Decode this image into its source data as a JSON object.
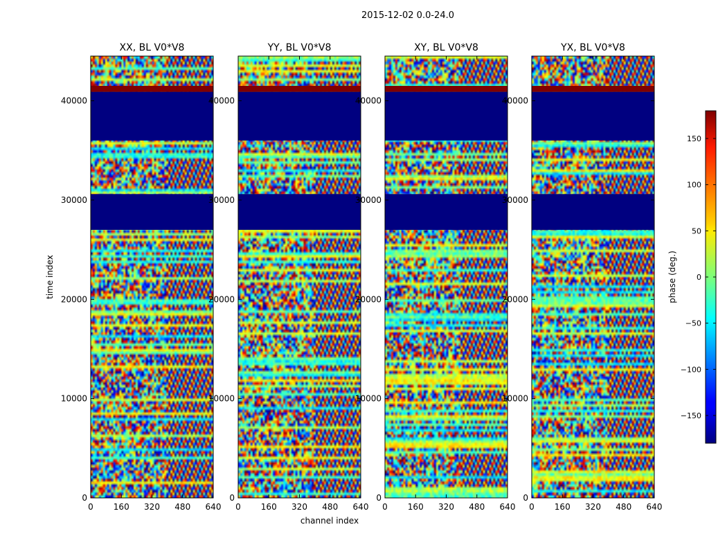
{
  "figure": {
    "suptitle": "2015-12-02 0.0-24.0"
  },
  "chart_data": {
    "type": "heatmap",
    "title": "2015-12-02 0.0-24.0",
    "xlabel": "channel index",
    "ylabel": "time index",
    "xlim": [
      0,
      640
    ],
    "ylim": [
      0,
      44500
    ],
    "x_ticks": [
      0,
      160,
      320,
      480,
      640
    ],
    "y_ticks": [
      0,
      10000,
      20000,
      30000,
      40000
    ],
    "colorbar": {
      "label": "phase (deg.)",
      "range": [
        -180,
        180
      ],
      "ticks": [
        150,
        100,
        50,
        0,
        -50,
        -100,
        -150
      ],
      "tick_labels": [
        "150",
        "100",
        "50",
        "0",
        "−50",
        "−100",
        "−150"
      ]
    },
    "panels": [
      {
        "name": "XX, BL V0*V8",
        "pol": "XX"
      },
      {
        "name": "YY, BL V0*V8",
        "pol": "YY"
      },
      {
        "name": "XY, BL V0*V8",
        "pol": "XY"
      },
      {
        "name": "YX, BL V0*V8",
        "pol": "YX"
      }
    ],
    "flagged_bands": [
      {
        "from": 36000,
        "to": 40900,
        "value": -180
      },
      {
        "from": 27000,
        "to": 30600,
        "value": -180
      }
    ],
    "saturated_bands": [
      {
        "from": 40900,
        "to": 41500,
        "value": 180
      }
    ],
    "colors": {
      "flagged": "#00007f",
      "saturated": "#7f0000"
    }
  }
}
